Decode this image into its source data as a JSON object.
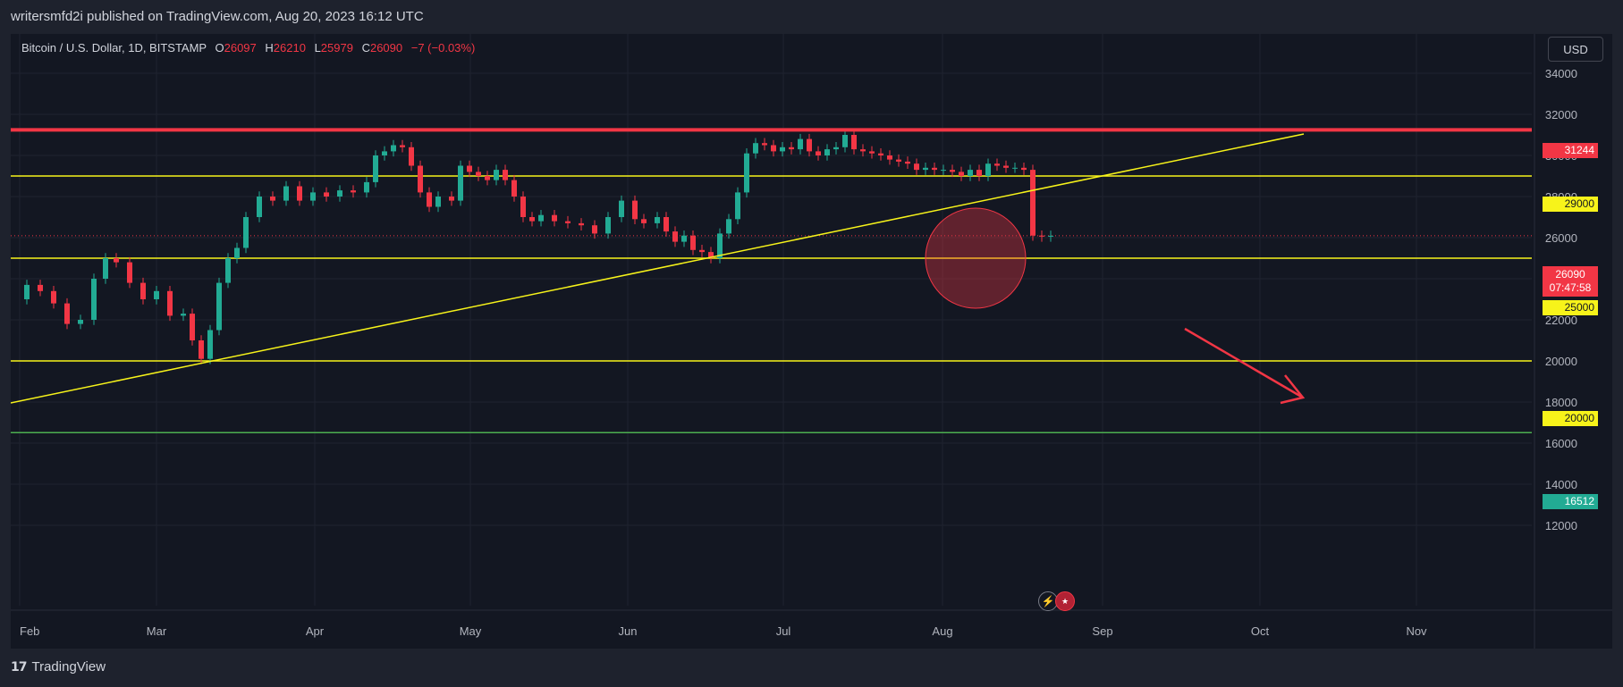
{
  "header": {
    "published_text": "writersmfd2i published on TradingView.com, Aug 20, 2023 16:12 UTC"
  },
  "legend": {
    "symbol": "Bitcoin / U.S. Dollar, 1D, BITSTAMP",
    "o_label": "O",
    "o_value": "26097",
    "h_label": "H",
    "h_value": "26210",
    "l_label": "L",
    "l_value": "25979",
    "c_label": "C",
    "c_value": "26090",
    "change": "−7 (−0.03%)"
  },
  "currency_button": "USD",
  "price_axis": {
    "ticks": [
      "34000",
      "32000",
      "30000",
      "28000",
      "26000",
      "24000",
      "22000",
      "20000",
      "18000",
      "16000",
      "14000",
      "12000"
    ]
  },
  "time_axis": {
    "ticks": [
      "Feb",
      "Mar",
      "Apr",
      "May",
      "Jun",
      "Jul",
      "Aug",
      "Sep",
      "Oct",
      "Nov"
    ]
  },
  "levels": {
    "resistance": "31244",
    "level_29000": "29000",
    "level_25000": "25000",
    "level_20000": "20000",
    "support_green": "16512"
  },
  "current_price": {
    "value": "26090",
    "countdown": "07:47:58"
  },
  "colors": {
    "up": "#22ab94",
    "down": "#f23645",
    "yellow": "#f7f31a",
    "green": "#4caf50",
    "background": "#131722"
  },
  "event_icons": [
    "lightning-icon",
    "us-flag-icon"
  ],
  "footer": {
    "brand": "TradingView"
  }
}
